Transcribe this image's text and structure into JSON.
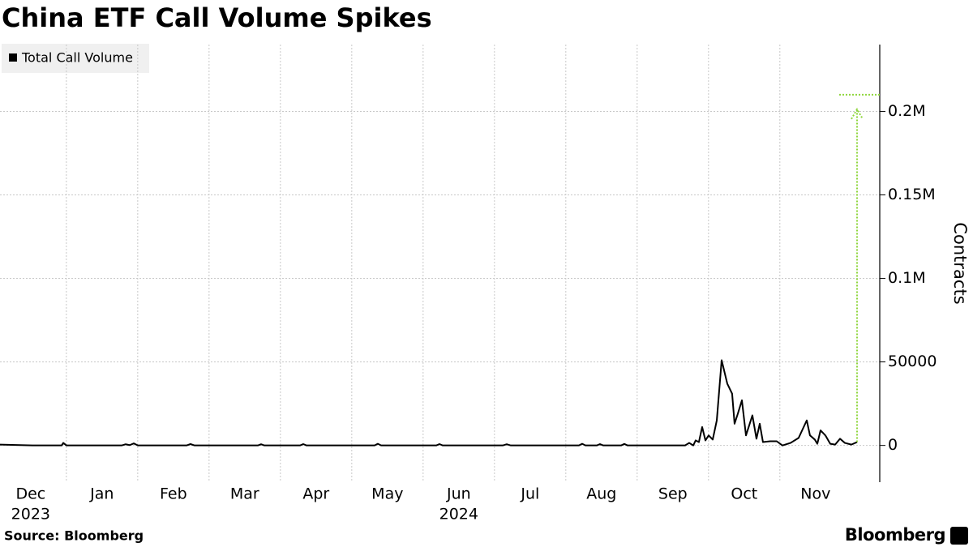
{
  "chart_data": {
    "type": "line",
    "title": "China ETF Call Volume Spikes",
    "source": "Source: Bloomberg",
    "brand": "Bloomberg",
    "y_label": "Contracts",
    "xlim": [
      0.07,
      12.4
    ],
    "xticks": [
      {
        "value": 0,
        "label": "Dec"
      },
      {
        "value": 1,
        "label": "Jan"
      },
      {
        "value": 2,
        "label": "Feb"
      },
      {
        "value": 3,
        "label": "Mar"
      },
      {
        "value": 4,
        "label": "Apr"
      },
      {
        "value": 5,
        "label": "May"
      },
      {
        "value": 6,
        "label": "Jun"
      },
      {
        "value": 7,
        "label": "Jul"
      },
      {
        "value": 8,
        "label": "Aug"
      },
      {
        "value": 9,
        "label": "Sep"
      },
      {
        "value": 10,
        "label": "Oct"
      },
      {
        "value": 11,
        "label": "Nov"
      }
    ],
    "year_labels": [
      {
        "value": 0,
        "label": "2023"
      },
      {
        "value": 6,
        "label": "2024"
      }
    ],
    "ylim": [
      -22000,
      240000
    ],
    "yticks": [
      0,
      50000,
      {
        "value": 100000,
        "label": "0.1M"
      },
      {
        "value": 150000,
        "label": "0.15M"
      },
      {
        "value": 200000,
        "label": "0.2M"
      }
    ],
    "grid": true,
    "legend": "top-left",
    "x": [
      0.07,
      0.525,
      0.934,
      0.957,
      1.002,
      1.775,
      1.831,
      1.888,
      1.945,
      2.002,
      2.684,
      2.74,
      2.797,
      3.684,
      3.729,
      3.775,
      4.275,
      4.32,
      4.366,
      5.32,
      5.365,
      5.411,
      6.184,
      6.229,
      6.275,
      7.116,
      7.172,
      7.229,
      8.184,
      8.229,
      8.275,
      8.434,
      8.479,
      8.525,
      8.775,
      8.82,
      8.866,
      9.672,
      9.729,
      9.786,
      9.82,
      9.865,
      9.911,
      9.957,
      10.002,
      10.059,
      10.116,
      10.184,
      10.263,
      10.331,
      10.365,
      10.411,
      10.468,
      10.525,
      10.615,
      10.672,
      10.718,
      10.763,
      10.866,
      10.956,
      11.036,
      11.15,
      11.263,
      11.377,
      11.422,
      11.49,
      11.525,
      11.57,
      11.638,
      11.706,
      11.775,
      11.843,
      11.911,
      12.002,
      12.082
    ],
    "series": [
      {
        "name": "Total Call Volume",
        "color": "#000000",
        "values": [
          500,
          0,
          0,
          1500,
          0,
          0,
          700,
          200,
          1200,
          0,
          0,
          800,
          0,
          0,
          700,
          0,
          0,
          800,
          0,
          0,
          1000,
          0,
          0,
          800,
          0,
          0,
          700,
          0,
          0,
          1000,
          0,
          0,
          800,
          0,
          0,
          900,
          0,
          0,
          1500,
          0,
          3000,
          2000,
          11000,
          3000,
          6000,
          3500,
          15000,
          51000,
          37000,
          31000,
          13000,
          19000,
          27000,
          6000,
          18000,
          4000,
          13000,
          2000,
          2500,
          2500,
          0,
          1500,
          4500,
          15000,
          6000,
          3500,
          1000,
          9000,
          6000,
          1000,
          500,
          4000,
          1500,
          500,
          2000
        ]
      }
    ],
    "annotation": {
      "x": 12.082,
      "from": 2000,
      "to": 210000,
      "color": "#8fd63c"
    }
  }
}
